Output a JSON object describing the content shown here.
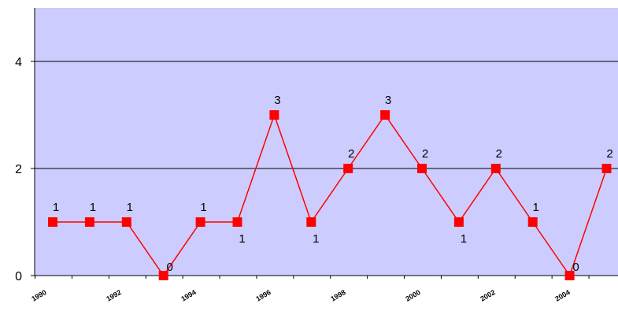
{
  "chart_data": {
    "type": "line",
    "title": "",
    "xlabel": "",
    "ylabel": "",
    "x": [
      "1990",
      "1991",
      "1992",
      "1993",
      "1994",
      "1995",
      "1996",
      "1997",
      "1998",
      "1999",
      "2000",
      "2001",
      "2002",
      "2003",
      "2004",
      "2005"
    ],
    "x_tick_labels": [
      "1990",
      "1992",
      "1994",
      "1996",
      "1998",
      "2000",
      "2002",
      "2004"
    ],
    "series": [
      {
        "values": [
          1,
          1,
          1,
          0,
          1,
          1,
          3,
          1,
          2,
          3,
          2,
          1,
          2,
          1,
          0,
          2
        ],
        "data_labels": [
          "1",
          "1",
          "1",
          "0",
          "1",
          "1",
          "3",
          "1",
          "2",
          "3",
          "2",
          "1",
          "2",
          "1",
          "0",
          "2"
        ]
      }
    ],
    "y_ticks": [
      0,
      2,
      4
    ],
    "ylim": [
      0,
      5
    ],
    "grid": true,
    "legend": "none",
    "colors": {
      "plot_background": "#ccccff",
      "series_line": "#ff0000",
      "marker": "#ff0000",
      "gridline": "#000000",
      "axis": "#000000"
    }
  }
}
